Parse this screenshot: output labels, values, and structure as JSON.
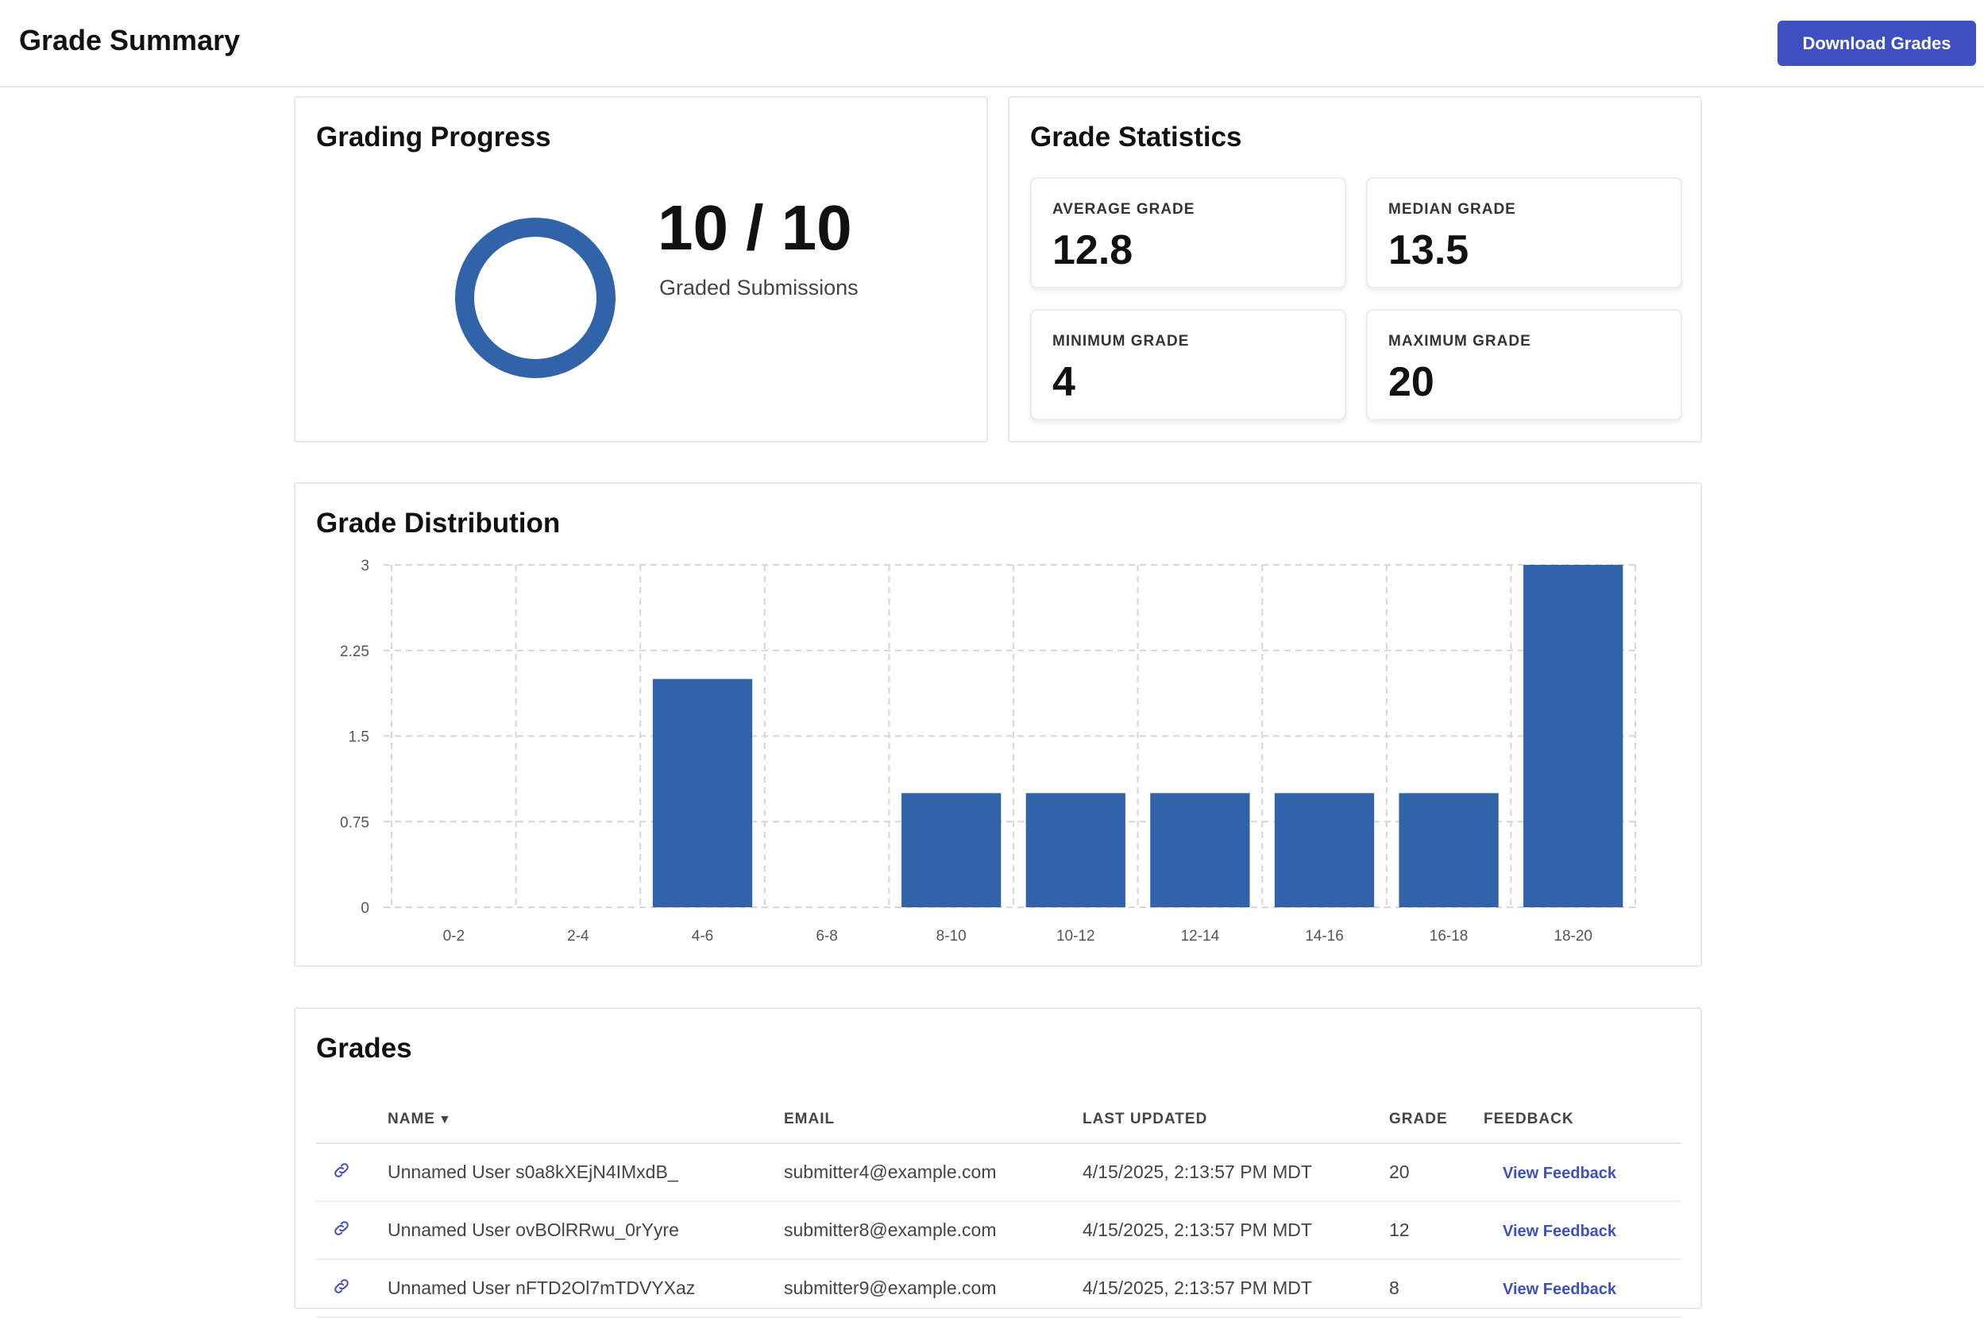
{
  "header": {
    "title": "Grade Summary",
    "download_label": "Download Grades"
  },
  "progress": {
    "title": "Grading Progress",
    "count": "10 / 10",
    "label": "Graded Submissions",
    "fraction": 1.0,
    "ring_color": "#3163a8"
  },
  "stats": {
    "title": "Grade Statistics",
    "average": {
      "label": "AVERAGE GRADE",
      "value": "12.8"
    },
    "median": {
      "label": "MEDIAN GRADE",
      "value": "13.5"
    },
    "minimum": {
      "label": "MINIMUM GRADE",
      "value": "4"
    },
    "maximum": {
      "label": "MAXIMUM GRADE",
      "value": "20"
    }
  },
  "distribution": {
    "title": "Grade Distribution"
  },
  "chart_data": {
    "type": "bar",
    "categories": [
      "0-2",
      "2-4",
      "4-6",
      "6-8",
      "8-10",
      "10-12",
      "12-14",
      "14-16",
      "16-18",
      "18-20"
    ],
    "values": [
      0,
      0,
      2,
      0,
      1,
      1,
      1,
      1,
      1,
      3
    ],
    "yticks": [
      "0",
      "0.75",
      "1.5",
      "2.25",
      "3"
    ],
    "ylim": [
      0,
      3
    ],
    "grid": true,
    "bar_color": "#3163a8",
    "title": "",
    "xlabel": "",
    "ylabel": ""
  },
  "grades": {
    "title": "Grades",
    "columns": {
      "name": "NAME",
      "sort_indicator": "▼",
      "email": "EMAIL",
      "updated": "LAST UPDATED",
      "grade": "GRADE",
      "feedback": "FEEDBACK"
    },
    "rows": [
      {
        "name": "Unnamed User s0a8kXEjN4IMxdB_",
        "email": "submitter4@example.com",
        "updated": "4/15/2025, 2:13:57 PM MDT",
        "grade": "20",
        "feedback": "View Feedback"
      },
      {
        "name": "Unnamed User ovBOlRRwu_0rYyre",
        "email": "submitter8@example.com",
        "updated": "4/15/2025, 2:13:57 PM MDT",
        "grade": "12",
        "feedback": "View Feedback"
      },
      {
        "name": "Unnamed User nFTD2Ol7mTDVYXaz",
        "email": "submitter9@example.com",
        "updated": "4/15/2025, 2:13:57 PM MDT",
        "grade": "8",
        "feedback": "View Feedback"
      }
    ]
  }
}
